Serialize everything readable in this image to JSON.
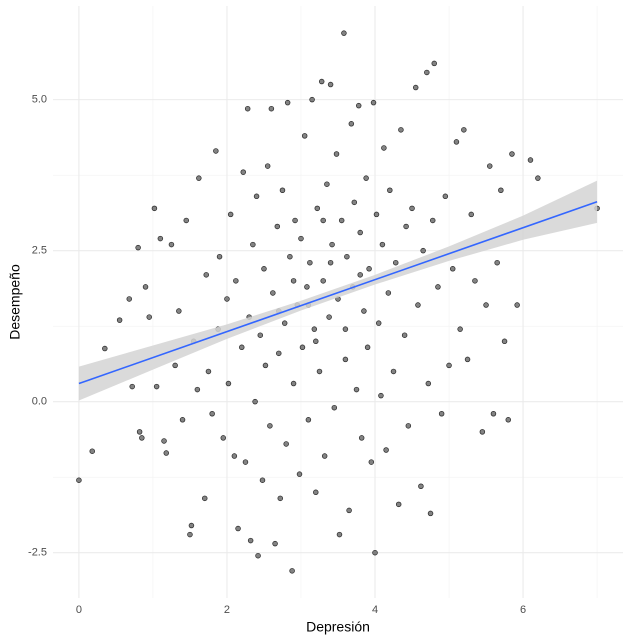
{
  "chart_data": {
    "type": "scatter",
    "xlabel": "Depresión",
    "ylabel": "Desempeño",
    "xlim": [
      -0.35,
      7.35
    ],
    "ylim": [
      -3.25,
      6.55
    ],
    "xticks": [
      0,
      2,
      4,
      6
    ],
    "yticks": [
      -2.5,
      {
        "value": 0,
        "label": "0.0"
      },
      2.5,
      {
        "value": 5,
        "label": "5.0"
      }
    ],
    "x_minor_ticks": [
      1,
      3,
      5,
      7
    ],
    "y_minor_ticks": [
      -1.25,
      1.25,
      3.75
    ],
    "grid": true,
    "series": [
      {
        "color": "#595959",
        "x": [
          0.0,
          0.18,
          0.35,
          0.55,
          0.68,
          0.72,
          0.8,
          0.82,
          0.85,
          0.9,
          0.95,
          1.02,
          1.05,
          1.1,
          1.15,
          1.18,
          1.25,
          1.3,
          1.35,
          1.4,
          1.45,
          1.5,
          1.52,
          1.55,
          1.6,
          1.62,
          1.7,
          1.72,
          1.75,
          1.8,
          1.85,
          1.88,
          1.9,
          1.95,
          2.0,
          2.02,
          2.05,
          2.1,
          2.12,
          2.15,
          2.2,
          2.22,
          2.25,
          2.28,
          2.3,
          2.32,
          2.35,
          2.38,
          2.4,
          2.42,
          2.45,
          2.48,
          2.5,
          2.52,
          2.55,
          2.58,
          2.6,
          2.62,
          2.65,
          2.68,
          2.7,
          2.72,
          2.75,
          2.78,
          2.8,
          2.82,
          2.85,
          2.88,
          2.9,
          2.92,
          2.95,
          2.98,
          3.0,
          3.02,
          3.05,
          3.08,
          3.1,
          3.12,
          3.15,
          3.18,
          3.2,
          3.22,
          3.25,
          3.28,
          3.3,
          3.32,
          3.35,
          3.38,
          3.4,
          3.42,
          3.45,
          3.48,
          3.5,
          3.52,
          3.55,
          3.58,
          3.6,
          3.62,
          3.65,
          3.68,
          3.7,
          3.72,
          3.75,
          3.78,
          3.8,
          3.82,
          3.85,
          3.88,
          3.9,
          3.92,
          3.95,
          3.98,
          4.0,
          4.02,
          4.05,
          4.08,
          4.1,
          4.12,
          4.15,
          4.18,
          4.2,
          4.25,
          4.28,
          4.32,
          4.35,
          4.4,
          4.42,
          4.45,
          4.5,
          4.55,
          4.58,
          4.62,
          4.65,
          4.7,
          4.72,
          4.75,
          4.78,
          4.8,
          4.85,
          4.9,
          4.95,
          5.0,
          5.05,
          5.1,
          5.15,
          5.2,
          5.25,
          5.3,
          5.35,
          5.45,
          5.5,
          5.55,
          5.6,
          5.65,
          5.7,
          5.75,
          5.8,
          5.85,
          5.92,
          6.1,
          6.2,
          7.0,
          3.2,
          3.4,
          3.1,
          3.6,
          2.9,
          3.3,
          2.7,
          3.8
        ],
        "values": [
          -1.3,
          -0.82,
          0.88,
          1.35,
          1.7,
          0.25,
          2.55,
          -0.5,
          -0.6,
          1.9,
          1.4,
          3.2,
          0.25,
          2.7,
          -0.65,
          -0.85,
          2.6,
          0.6,
          1.5,
          -0.3,
          3.0,
          -2.2,
          -2.05,
          1.0,
          0.2,
          3.7,
          -1.6,
          2.1,
          0.5,
          -0.2,
          4.15,
          1.2,
          2.4,
          -0.6,
          1.7,
          0.3,
          3.1,
          -0.9,
          2.0,
          -2.1,
          0.9,
          3.8,
          -1.0,
          4.85,
          1.4,
          -2.3,
          2.6,
          0.0,
          3.4,
          -2.55,
          1.1,
          -1.3,
          2.2,
          0.6,
          3.9,
          -0.4,
          4.85,
          1.8,
          -2.35,
          2.9,
          0.8,
          -1.6,
          3.5,
          1.3,
          -0.7,
          4.95,
          2.4,
          -2.8,
          0.3,
          3.0,
          1.6,
          -1.2,
          2.7,
          0.9,
          4.4,
          1.9,
          -0.3,
          2.3,
          5.0,
          1.2,
          -1.5,
          3.2,
          0.5,
          5.3,
          2.0,
          -0.9,
          3.6,
          1.4,
          5.25,
          2.6,
          -0.1,
          4.1,
          1.7,
          -2.2,
          3.0,
          6.1,
          0.7,
          2.4,
          -1.8,
          4.6,
          1.9,
          3.3,
          0.2,
          4.9,
          2.8,
          -0.6,
          1.5,
          3.7,
          0.9,
          2.2,
          -1.0,
          4.95,
          -2.5,
          3.1,
          1.3,
          0.1,
          2.6,
          4.2,
          -0.8,
          1.8,
          3.5,
          0.5,
          2.3,
          -1.7,
          4.5,
          1.1,
          2.9,
          -0.4,
          3.2,
          5.2,
          1.6,
          -1.4,
          2.5,
          5.45,
          0.3,
          -1.85,
          3.0,
          5.6,
          1.9,
          -0.2,
          3.4,
          0.6,
          2.2,
          4.3,
          1.2,
          4.5,
          0.7,
          3.1,
          2.0,
          -0.5,
          1.6,
          3.9,
          -0.2,
          2.3,
          3.5,
          1.0,
          -0.3,
          4.1,
          1.6,
          4.0,
          3.7,
          3.2,
          1.0,
          2.3,
          1.6,
          1.2,
          2.0,
          3.0,
          1.5,
          2.1
        ]
      },
      {
        "color": "#3366ff",
        "x": [
          0,
          7
        ],
        "values": [
          0.3,
          3.31
        ]
      }
    ],
    "band": {
      "color": "#d3d3d3",
      "x": [
        0,
        1,
        2,
        3,
        4,
        5,
        6,
        7
      ],
      "lower": [
        0.02,
        0.53,
        1.04,
        1.51,
        1.94,
        2.33,
        2.68,
        2.96
      ],
      "upper": [
        0.58,
        0.93,
        1.28,
        1.67,
        2.1,
        2.57,
        3.08,
        3.66
      ]
    }
  }
}
